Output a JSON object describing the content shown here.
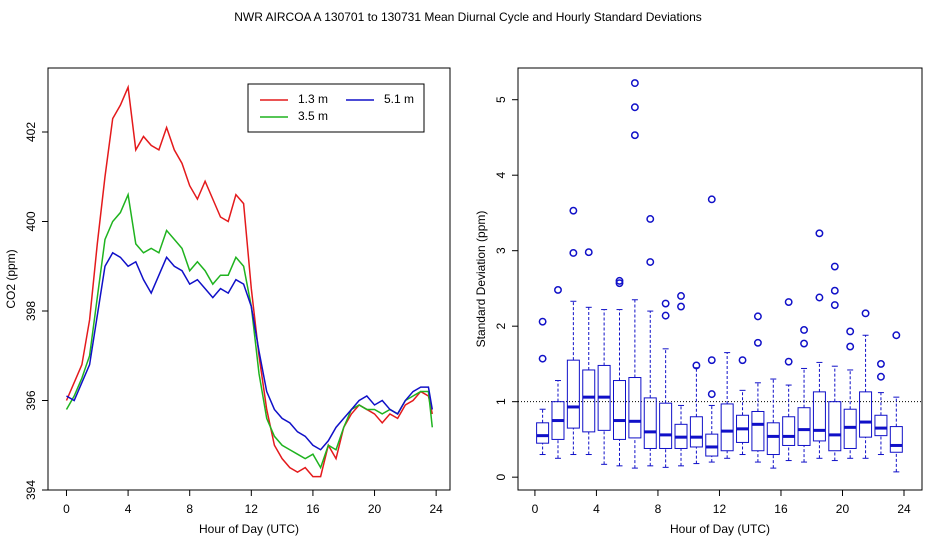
{
  "title": "NWR   AIRCOA A   130701 to 130731   Mean Diurnal Cycle and Hourly Standard Deviations",
  "chart_data": [
    {
      "type": "line",
      "xlabel": "Hour of Day (UTC)",
      "ylabel": "CO2 (ppm)",
      "xlim": [
        -1.2,
        24.9
      ],
      "ylim": [
        394,
        403.43
      ],
      "xticks": [
        0,
        4,
        8,
        12,
        16,
        20,
        24
      ],
      "yticks": [
        394,
        396,
        398,
        400,
        402
      ],
      "legend": "top-right",
      "x": [
        0,
        0.5,
        1,
        1.5,
        2,
        2.5,
        3,
        3.5,
        4,
        4.5,
        5,
        5.5,
        6,
        6.5,
        7,
        7.5,
        8,
        8.5,
        9,
        9.5,
        10,
        10.5,
        11,
        11.5,
        12,
        12.5,
        13,
        13.5,
        14,
        14.5,
        15,
        15.5,
        16,
        16.5,
        17,
        17.5,
        18,
        18.5,
        19,
        19.5,
        20,
        20.5,
        21,
        21.5,
        22,
        22.5,
        23,
        23.5,
        23.75
      ],
      "series": [
        {
          "name": "1.3 m",
          "color": "#e41a1c",
          "values": [
            396.0,
            396.4,
            396.8,
            397.8,
            399.5,
            401.0,
            402.3,
            402.6,
            403.0,
            401.6,
            401.9,
            401.7,
            401.6,
            402.1,
            401.6,
            401.3,
            400.8,
            400.5,
            400.9,
            400.5,
            400.1,
            400.0,
            400.6,
            400.4,
            398.5,
            397.0,
            395.8,
            395.0,
            394.7,
            394.5,
            394.4,
            394.5,
            394.3,
            394.3,
            395.0,
            394.7,
            395.4,
            395.7,
            395.9,
            395.8,
            395.7,
            395.5,
            395.7,
            395.6,
            395.9,
            396.0,
            396.2,
            396.1,
            395.7
          ]
        },
        {
          "name": "3.5 m",
          "color": "#1fb31f",
          "values": [
            395.8,
            396.1,
            396.5,
            397.0,
            398.3,
            399.6,
            400.0,
            400.2,
            400.6,
            399.5,
            399.3,
            399.4,
            399.3,
            399.8,
            399.6,
            399.4,
            398.9,
            399.1,
            398.9,
            398.6,
            398.8,
            398.8,
            399.2,
            399.0,
            398.1,
            396.6,
            395.6,
            395.2,
            395.0,
            394.9,
            394.8,
            394.7,
            394.8,
            394.5,
            395.0,
            394.9,
            395.4,
            395.8,
            395.9,
            395.8,
            395.8,
            395.7,
            395.8,
            395.7,
            396.0,
            396.1,
            396.2,
            396.2,
            395.4
          ]
        },
        {
          "name": "5.1 m",
          "color": "#1010c8",
          "values": [
            396.1,
            396.0,
            396.4,
            396.8,
            397.9,
            399.0,
            399.3,
            399.2,
            399.0,
            399.1,
            398.7,
            398.4,
            398.8,
            399.2,
            399.0,
            398.9,
            398.6,
            398.7,
            398.5,
            398.3,
            398.5,
            398.4,
            398.7,
            398.6,
            398.1,
            397.1,
            396.2,
            395.8,
            395.6,
            395.5,
            395.3,
            395.2,
            395.0,
            394.9,
            395.1,
            395.4,
            395.6,
            395.8,
            396.0,
            396.1,
            395.9,
            396.0,
            395.8,
            395.7,
            396.0,
            396.2,
            396.3,
            396.3,
            395.8
          ]
        }
      ]
    },
    {
      "type": "box",
      "xlabel": "Hour of Day (UTC)",
      "ylabel": "Standard Deviation (ppm)",
      "xlim": [
        -1.1,
        25.17
      ],
      "ylim": [
        -0.17,
        5.42
      ],
      "xticks": [
        0,
        4,
        8,
        12,
        16,
        20,
        24
      ],
      "yticks": [
        0,
        1,
        2,
        3,
        4,
        5
      ],
      "hline": 1,
      "color": "#1010c8",
      "x": [
        0.5,
        1.5,
        2.5,
        3.5,
        4.5,
        5.5,
        6.5,
        7.5,
        8.5,
        9.5,
        10.5,
        11.5,
        12.5,
        13.5,
        14.5,
        15.5,
        16.5,
        17.5,
        18.5,
        19.5,
        20.5,
        21.5,
        22.5,
        23.5
      ],
      "boxes": [
        {
          "low": 0.3,
          "q1": 0.45,
          "median": 0.55,
          "q3": 0.72,
          "high": 0.9,
          "outliers": [
            1.57,
            2.06
          ]
        },
        {
          "low": 0.25,
          "q1": 0.5,
          "median": 0.75,
          "q3": 1.0,
          "high": 1.28,
          "outliers": [
            2.48
          ]
        },
        {
          "low": 0.3,
          "q1": 0.65,
          "median": 0.93,
          "q3": 1.55,
          "high": 2.33,
          "outliers": [
            2.97,
            3.53
          ]
        },
        {
          "low": 0.3,
          "q1": 0.6,
          "median": 1.06,
          "q3": 1.42,
          "high": 2.25,
          "outliers": [
            2.98
          ]
        },
        {
          "low": 0.17,
          "q1": 0.62,
          "median": 1.06,
          "q3": 1.48,
          "high": 2.22,
          "outliers": []
        },
        {
          "low": 0.15,
          "q1": 0.5,
          "median": 0.75,
          "q3": 1.28,
          "high": 2.22,
          "outliers": [
            2.57,
            2.6
          ]
        },
        {
          "low": 0.12,
          "q1": 0.52,
          "median": 0.74,
          "q3": 1.32,
          "high": 2.35,
          "outliers": [
            4.53,
            4.9,
            5.22
          ]
        },
        {
          "low": 0.15,
          "q1": 0.38,
          "median": 0.6,
          "q3": 1.05,
          "high": 2.2,
          "outliers": [
            2.85,
            3.42
          ]
        },
        {
          "low": 0.13,
          "q1": 0.38,
          "median": 0.56,
          "q3": 0.98,
          "high": 1.7,
          "outliers": [
            2.14,
            2.3
          ]
        },
        {
          "low": 0.15,
          "q1": 0.38,
          "median": 0.53,
          "q3": 0.7,
          "high": 0.95,
          "outliers": [
            2.26,
            2.4
          ]
        },
        {
          "low": 0.18,
          "q1": 0.4,
          "median": 0.53,
          "q3": 0.8,
          "high": 1.45,
          "outliers": [
            1.48
          ]
        },
        {
          "low": 0.2,
          "q1": 0.28,
          "median": 0.4,
          "q3": 0.57,
          "high": 0.95,
          "outliers": [
            1.1,
            1.55,
            3.68
          ]
        },
        {
          "low": 0.25,
          "q1": 0.35,
          "median": 0.61,
          "q3": 0.97,
          "high": 1.65,
          "outliers": []
        },
        {
          "low": 0.3,
          "q1": 0.46,
          "median": 0.64,
          "q3": 0.82,
          "high": 1.15,
          "outliers": [
            1.55
          ]
        },
        {
          "low": 0.2,
          "q1": 0.35,
          "median": 0.7,
          "q3": 0.87,
          "high": 1.25,
          "outliers": [
            1.78,
            2.13
          ]
        },
        {
          "low": 0.12,
          "q1": 0.3,
          "median": 0.54,
          "q3": 0.72,
          "high": 1.3,
          "outliers": []
        },
        {
          "low": 0.22,
          "q1": 0.42,
          "median": 0.54,
          "q3": 0.8,
          "high": 1.22,
          "outliers": [
            1.53,
            2.32
          ]
        },
        {
          "low": 0.2,
          "q1": 0.42,
          "median": 0.63,
          "q3": 0.92,
          "high": 1.44,
          "outliers": [
            1.77,
            1.95
          ]
        },
        {
          "low": 0.25,
          "q1": 0.48,
          "median": 0.62,
          "q3": 1.13,
          "high": 1.52,
          "outliers": [
            2.38,
            3.23
          ]
        },
        {
          "low": 0.22,
          "q1": 0.35,
          "median": 0.56,
          "q3": 1.0,
          "high": 1.47,
          "outliers": [
            2.28,
            2.47,
            2.79
          ]
        },
        {
          "low": 0.25,
          "q1": 0.38,
          "median": 0.66,
          "q3": 0.9,
          "high": 1.42,
          "outliers": [
            1.73,
            1.93
          ]
        },
        {
          "low": 0.25,
          "q1": 0.53,
          "median": 0.73,
          "q3": 1.13,
          "high": 1.88,
          "outliers": [
            2.17
          ]
        },
        {
          "low": 0.3,
          "q1": 0.55,
          "median": 0.65,
          "q3": 0.82,
          "high": 1.12,
          "outliers": [
            1.33,
            1.5
          ]
        },
        {
          "low": 0.07,
          "q1": 0.33,
          "median": 0.42,
          "q3": 0.67,
          "high": 1.06,
          "outliers": [
            1.88
          ]
        }
      ]
    }
  ]
}
